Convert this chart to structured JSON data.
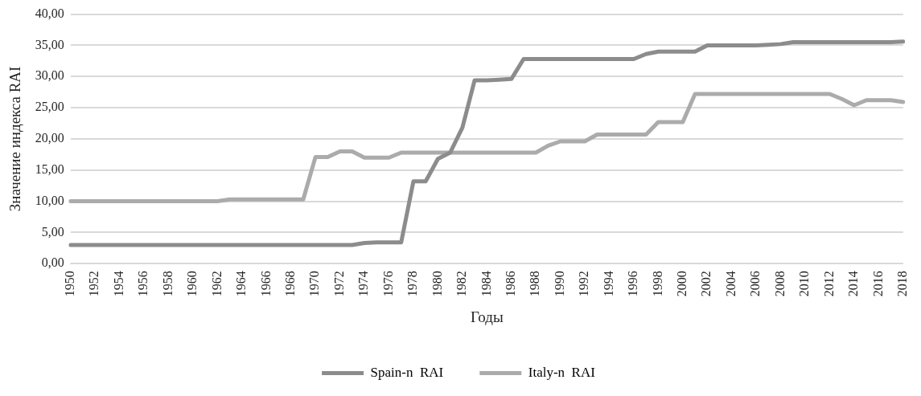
{
  "chart_data": {
    "type": "line",
    "xlabel": "Годы",
    "ylabel": "Значение индекса RAI",
    "categories": [
      "1950",
      null,
      "1952",
      null,
      "1954",
      null,
      "1956",
      null,
      "1958",
      null,
      "1960",
      null,
      "1962",
      null,
      "1964",
      null,
      "1966",
      null,
      "1968",
      null,
      "1970",
      null,
      "1972",
      null,
      "1974",
      null,
      "1976",
      null,
      "1978",
      null,
      "1980",
      null,
      "1982",
      null,
      "1984",
      null,
      "1986",
      null,
      "1988",
      null,
      "1990",
      null,
      "1992",
      null,
      "1994",
      null,
      "1996",
      null,
      "1998",
      null,
      "2000",
      null,
      "2002",
      null,
      "2004",
      null,
      "2006",
      null,
      "2008",
      null,
      "2010",
      null,
      "2012",
      null,
      "2014",
      null,
      "2016",
      null,
      "2018"
    ],
    "series": [
      {
        "name": "Spain-n  RAI",
        "color": "#8c8c8c",
        "values": [
          3.0,
          3.0,
          3.0,
          3.0,
          3.0,
          3.0,
          3.0,
          3.0,
          3.0,
          3.0,
          3.0,
          3.0,
          3.0,
          3.0,
          3.0,
          3.0,
          3.0,
          3.0,
          3.0,
          3.0,
          3.0,
          3.0,
          3.0,
          3.0,
          3.3,
          3.4,
          3.4,
          3.4,
          13.2,
          13.2,
          16.8,
          17.8,
          21.8,
          29.4,
          29.4,
          29.5,
          29.6,
          32.8,
          32.8,
          32.8,
          32.8,
          32.8,
          32.8,
          32.8,
          32.8,
          32.8,
          32.8,
          33.6,
          34.0,
          34.0,
          34.0,
          34.0,
          35.0,
          35.0,
          35.0,
          35.0,
          35.0,
          35.1,
          35.2,
          35.5,
          35.5,
          35.5,
          35.5,
          35.5,
          35.5,
          35.5,
          35.5,
          35.5,
          35.6
        ]
      },
      {
        "name": "Italy-n  RAI",
        "color": "#ababab",
        "values": [
          10.0,
          10.0,
          10.0,
          10.0,
          10.0,
          10.0,
          10.0,
          10.0,
          10.0,
          10.0,
          10.0,
          10.0,
          10.0,
          10.3,
          10.3,
          10.3,
          10.3,
          10.3,
          10.3,
          10.3,
          17.1,
          17.1,
          18.0,
          18.0,
          17.0,
          17.0,
          17.0,
          17.8,
          17.8,
          17.8,
          17.8,
          17.8,
          17.8,
          17.8,
          17.8,
          17.8,
          17.8,
          17.8,
          17.8,
          18.9,
          19.6,
          19.6,
          19.6,
          20.7,
          20.7,
          20.7,
          20.7,
          20.7,
          22.7,
          22.7,
          22.7,
          27.2,
          27.2,
          27.2,
          27.2,
          27.2,
          27.2,
          27.2,
          27.2,
          27.2,
          27.2,
          27.2,
          27.2,
          26.4,
          25.4,
          26.2,
          26.2,
          26.2,
          25.9
        ]
      }
    ],
    "ylim": [
      0,
      40
    ],
    "yticks": [
      {
        "value": 0,
        "label": "0,00"
      },
      {
        "value": 5,
        "label": "5,00"
      },
      {
        "value": 10,
        "label": "10,00"
      },
      {
        "value": 15,
        "label": "15,00"
      },
      {
        "value": 20,
        "label": "20,00"
      },
      {
        "value": 25,
        "label": "25,00"
      },
      {
        "value": 30,
        "label": "30,00"
      },
      {
        "value": 35,
        "label": "35,00"
      },
      {
        "value": 40,
        "label": "40,00"
      }
    ],
    "grid": "y",
    "legend": "bottom",
    "marker": "none",
    "line_style": "solid"
  }
}
